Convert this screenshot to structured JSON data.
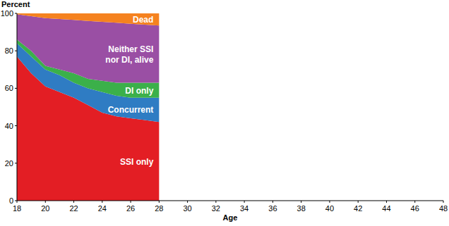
{
  "chart_data": {
    "type": "area",
    "stacked": true,
    "grid": false,
    "x_label": "Age",
    "y_label": "Percent",
    "x": [
      18,
      19,
      20,
      21,
      22,
      23,
      24,
      25,
      26,
      27,
      28
    ],
    "xlim": [
      18,
      48
    ],
    "xticks": [
      18,
      20,
      22,
      24,
      26,
      28,
      30,
      32,
      34,
      36,
      38,
      40,
      42,
      44,
      46,
      48
    ],
    "ylim": [
      0,
      100
    ],
    "yticks": [
      0,
      20,
      40,
      60,
      80,
      100
    ],
    "series": [
      {
        "name": "SSI only",
        "color": "#e31e24",
        "values": [
          77,
          68,
          61,
          58,
          55,
          51,
          47,
          45,
          44,
          43,
          42
        ]
      },
      {
        "name": "Concurrent",
        "color": "#2f7cc3",
        "values": [
          7,
          9,
          9,
          9,
          8,
          9,
          11,
          11,
          11,
          12,
          13
        ]
      },
      {
        "name": "DI only",
        "color": "#3bb04a",
        "values": [
          2,
          3,
          2,
          3,
          5,
          5,
          6,
          7,
          8,
          8,
          8
        ]
      },
      {
        "name": "Neither SSI nor DI, alive",
        "color": "#9a4fa4",
        "values": [
          13.5,
          18.5,
          25.5,
          27,
          28.5,
          31,
          31.5,
          32,
          31.5,
          31,
          30.5
        ]
      },
      {
        "name": "Dead",
        "color": "#f5821f",
        "values": [
          0.5,
          1.5,
          2.5,
          3,
          3.5,
          4,
          4.5,
          5,
          5.5,
          6,
          6.5
        ]
      }
    ]
  }
}
